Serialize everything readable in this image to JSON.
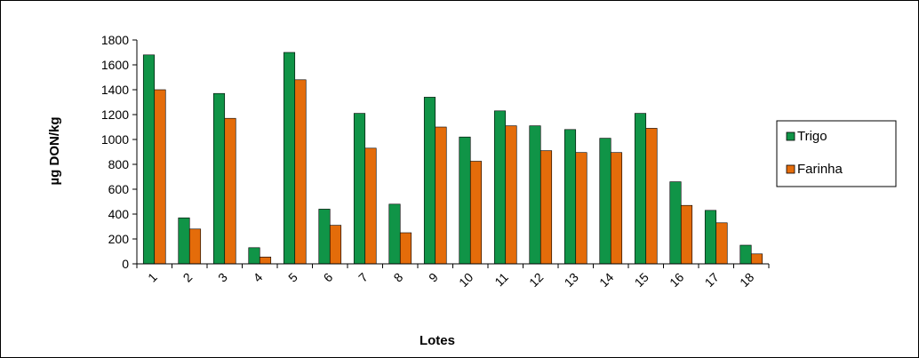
{
  "chart_data": {
    "type": "bar",
    "xlabel": "Lotes",
    "ylabel": "µg DON/kg",
    "ylim": [
      0,
      1800
    ],
    "yticks": [
      0,
      200,
      400,
      600,
      800,
      1000,
      1200,
      1400,
      1600,
      1800
    ],
    "grid": false,
    "legend_position": "right",
    "categories": [
      "1",
      "2",
      "3",
      "4",
      "5",
      "6",
      "7",
      "8",
      "9",
      "10",
      "11",
      "12",
      "13",
      "14",
      "15",
      "16",
      "17",
      "18"
    ],
    "series": [
      {
        "name": "Trigo",
        "color": "#109447",
        "values": [
          1680,
          370,
          1370,
          130,
          1700,
          440,
          1210,
          480,
          1340,
          1020,
          1230,
          1110,
          1080,
          1010,
          1210,
          660,
          430,
          150
        ]
      },
      {
        "name": "Farinha",
        "color": "#e46c0a",
        "values": [
          1400,
          280,
          1170,
          55,
          1480,
          310,
          930,
          250,
          1100,
          825,
          1110,
          910,
          895,
          895,
          1090,
          470,
          330,
          80
        ]
      }
    ]
  }
}
